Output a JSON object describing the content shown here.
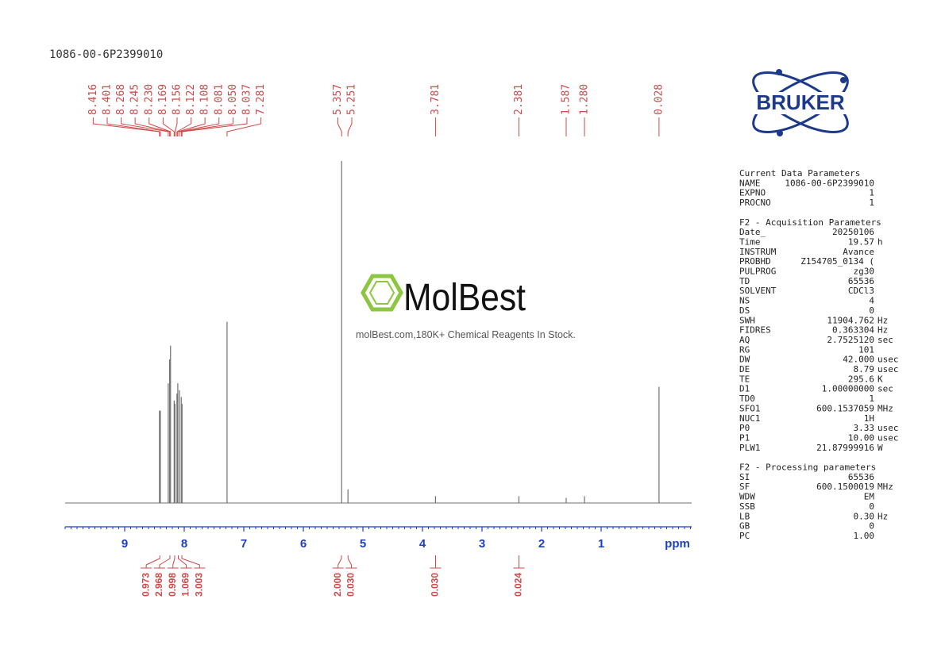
{
  "chart_data": {
    "type": "nmr",
    "title": "1086-00-6P2399010",
    "xlabel": "ppm",
    "xlim": [
      10.0,
      -0.52
    ],
    "xticks": [
      9,
      8,
      7,
      6,
      5,
      4,
      3,
      2,
      1
    ],
    "ylim": [
      0,
      100
    ],
    "color": "#707070",
    "label_color": "#d04848",
    "axis_color": "#1f3fbf",
    "peaks": {
      "x": [
        8.416,
        8.401,
        8.268,
        8.245,
        {
          "value": 8.23,
          "label": "8.230"
        },
        8.169,
        8.156,
        8.122,
        8.108,
        8.081,
        {
          "value": 8.05,
          "label": "8.050"
        },
        8.037,
        7.281,
        5.357,
        5.251,
        3.781,
        2.381,
        1.587,
        {
          "value": 1.28,
          "label": "1.280"
        },
        0.028
      ],
      "values": [
        27,
        27,
        35,
        42,
        46,
        30,
        29,
        32,
        35,
        33,
        31,
        29,
        53,
        100,
        4,
        2,
        2,
        1.5,
        2,
        34
      ]
    },
    "integrals": {
      "x": [
        8.41,
        8.24,
        8.16,
        8.1,
        8.04,
        5.36,
        5.25,
        3.78,
        2.38
      ],
      "values": [
        0.973,
        2.968,
        0.998,
        1.069,
        3.003,
        2,
        0.03,
        0.03,
        0.024
      ],
      "value_labels": [
        "0.973",
        "2.968",
        "0.998",
        "1.069",
        "3.003",
        "2.000",
        "0.030",
        "0.030",
        "0.024"
      ]
    }
  },
  "branding": {
    "bruker": "BRUKER",
    "molbest": "MolBest",
    "tagline": "molBest.com,180K+ Chemical Reagents In Stock."
  },
  "params": [
    {
      "title": "Current Data Parameters",
      "rows": [
        [
          "NAME",
          "1086-00-6P2399010",
          ""
        ],
        [
          "EXPNO",
          "1",
          ""
        ],
        [
          "PROCNO",
          "1",
          ""
        ]
      ]
    },
    {
      "title": "F2 - Acquisition Parameters",
      "rows": [
        [
          "Date_",
          "20250106",
          ""
        ],
        [
          "Time",
          "19.57",
          "h"
        ],
        [
          "INSTRUM",
          "Avance",
          ""
        ],
        [
          "PROBHD",
          "Z154705_0134 (",
          ""
        ],
        [
          "PULPROG",
          "zg30",
          ""
        ],
        [
          "TD",
          "65536",
          ""
        ],
        [
          "SOLVENT",
          "CDCl3",
          ""
        ],
        [
          "NS",
          "4",
          ""
        ],
        [
          "DS",
          "0",
          ""
        ],
        [
          "SWH",
          "11904.762",
          "Hz"
        ],
        [
          "FIDRES",
          "0.363304",
          "Hz"
        ],
        [
          "AQ",
          "2.7525120",
          "sec"
        ],
        [
          "RG",
          "101",
          ""
        ],
        [
          "DW",
          "42.000",
          "usec"
        ],
        [
          "DE",
          "8.79",
          "usec"
        ],
        [
          "TE",
          "295.6",
          "K"
        ],
        [
          "D1",
          "1.00000000",
          "sec"
        ],
        [
          "TD0",
          "1",
          ""
        ],
        [
          "SFO1",
          "600.1537059",
          "MHz"
        ],
        [
          "NUC1",
          "1H",
          ""
        ],
        [
          "P0",
          "3.33",
          "usec"
        ],
        [
          "P1",
          "10.00",
          "usec"
        ],
        [
          "PLW1",
          "21.87999916",
          "W"
        ]
      ]
    },
    {
      "title": "F2 - Processing parameters",
      "rows": [
        [
          "SI",
          "65536",
          ""
        ],
        [
          "SF",
          "600.1500019",
          "MHz"
        ],
        [
          "WDW",
          "EM",
          ""
        ],
        [
          "SSB",
          "0",
          ""
        ],
        [
          "LB",
          "0.30",
          "Hz"
        ],
        [
          "GB",
          "0",
          ""
        ],
        [
          "PC",
          "1.00",
          ""
        ]
      ]
    }
  ]
}
